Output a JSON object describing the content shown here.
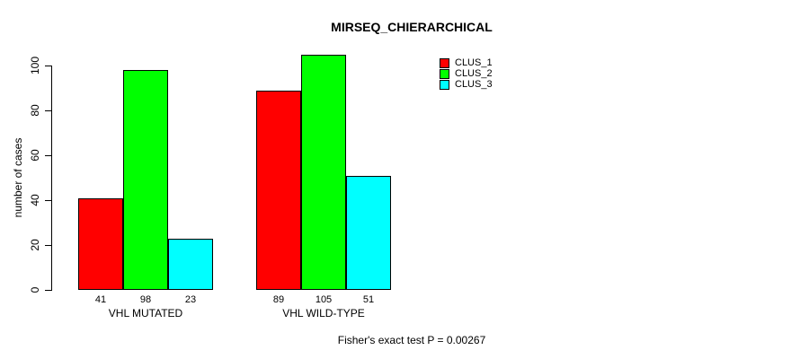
{
  "chart_data": {
    "type": "bar",
    "title": "MIRSEQ_CHIERARCHICAL",
    "xlabel": "",
    "ylabel": "number of cases",
    "categories": [
      "VHL MUTATED",
      "VHL WILD-TYPE"
    ],
    "series": [
      {
        "name": "CLUS_1",
        "color": "#ff0000",
        "values": [
          41,
          89
        ]
      },
      {
        "name": "CLUS_2",
        "color": "#00ff00",
        "values": [
          98,
          105
        ]
      },
      {
        "name": "CLUS_3",
        "color": "#00ffff",
        "values": [
          23,
          51
        ]
      }
    ],
    "yticks": [
      0,
      20,
      40,
      60,
      80,
      100
    ],
    "ylim": [
      0,
      100
    ],
    "grid": false,
    "legend_position": "top-right",
    "bar_border_color": "#000000",
    "annotation": "Fisher's exact test P = 0.00267"
  }
}
